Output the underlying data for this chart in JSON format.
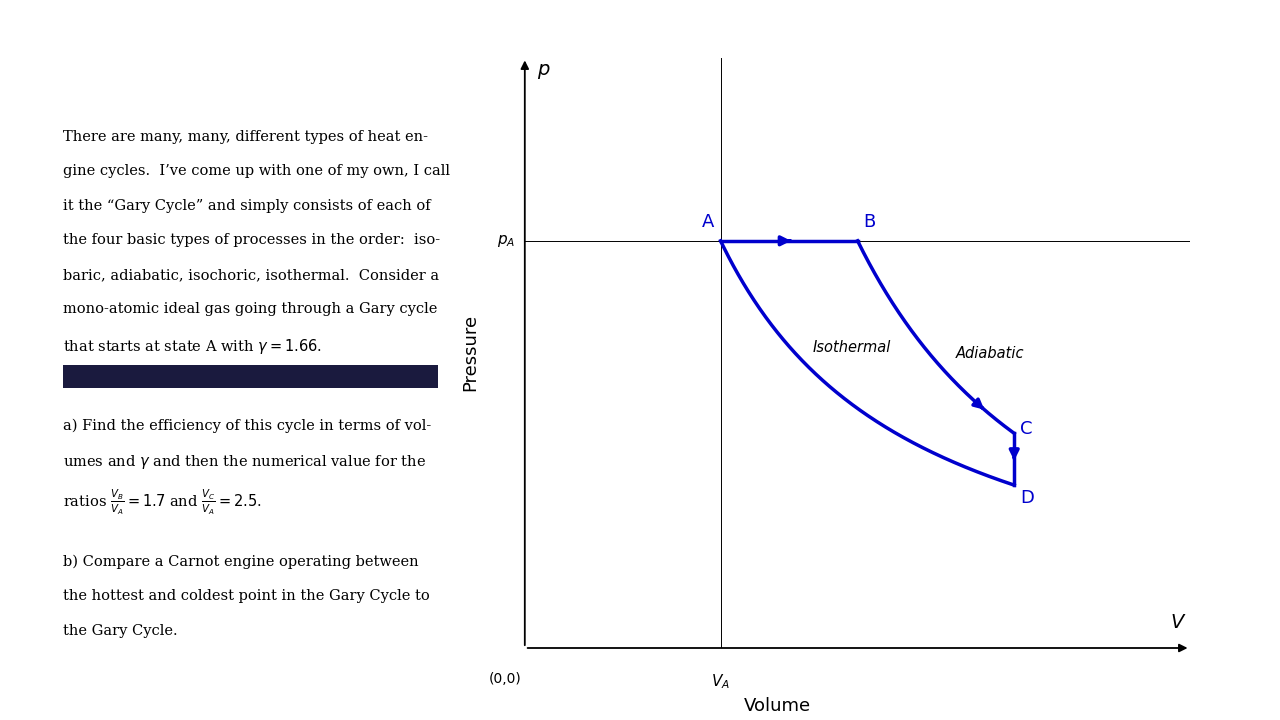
{
  "background_color": "#ffffff",
  "cycle_color": "#0000cd",
  "line_width": 2.5,
  "VA": 1.0,
  "pA": 1.0,
  "VB_ratio": 1.7,
  "VC_ratio": 2.5,
  "gamma": 1.66,
  "text_fontsize": 10.5,
  "label_fontsize": 13,
  "state_fontsize": 13,
  "tick_fontsize": 11,
  "text_content": [
    "There are many, many, different types of heat en-",
    "gine cycles.  I’ve come up with one of my own, I call",
    "it the “Gary Cycle” and simply consists of each of",
    "the four basic types of processes in the order:  iso-",
    "baric, adiabatic, isochoric, isothermal.  Consider a",
    "mono-atomic ideal gas going through a Gary cycle",
    "that starts at state A with $\\gamma = 1.66$."
  ],
  "text_a": [
    "a) Find the efficiency of this cycle in terms of vol-",
    "umes and $\\gamma$ and then the numerical value for the",
    "ratios $\\frac{V_B}{V_A} = 1.7$ and $\\frac{V_C}{V_A} = 2.5$."
  ],
  "text_b": [
    "b) Compare a Carnot engine operating between",
    "the hottest and coldest point in the Gary Cycle to",
    "the Gary Cycle."
  ]
}
